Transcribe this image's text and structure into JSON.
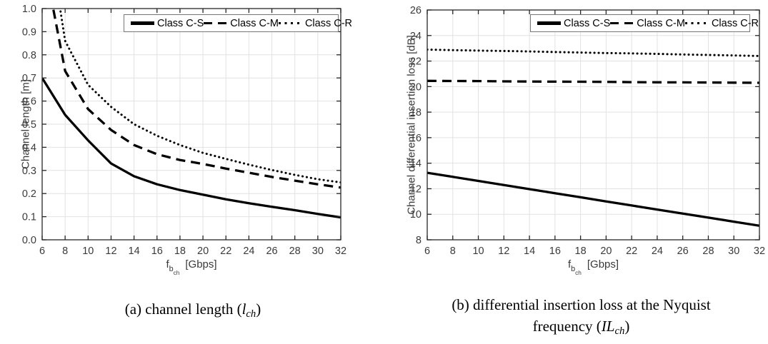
{
  "figures": {
    "a": {
      "caption": {
        "prefix": "(a) channel length (",
        "symbol": "l",
        "sub": "ch",
        "suffix": ")"
      }
    },
    "b": {
      "caption": {
        "line1": "(b) differential insertion loss at the Nyquist",
        "line2_prefix": "frequency (",
        "symbol": "IL",
        "sub": "ch",
        "suffix": ")"
      }
    }
  },
  "chart_data": [
    {
      "type": "line",
      "title": "",
      "xlabel": "f_b_ch [Gbps]",
      "xlabel_parts": {
        "symbol": "f",
        "sub": "b",
        "subsub": "ch",
        "unit": "[Gbps]"
      },
      "ylabel": "Channel length [m]",
      "xlim": [
        6,
        32
      ],
      "ylim": [
        0,
        1
      ],
      "grid": true,
      "legend_position": "top",
      "xticks": [
        6,
        8,
        10,
        12,
        14,
        16,
        18,
        20,
        22,
        24,
        26,
        28,
        30,
        32
      ],
      "yticks": [
        0,
        0.1,
        0.2,
        0.3,
        0.4,
        0.5,
        0.6,
        0.7,
        0.8,
        0.9,
        1
      ],
      "ytick_labels": [
        "0.0",
        "0.1",
        "0.2",
        "0.3",
        "0.4",
        "0.5",
        "0.6",
        "0.7",
        "0.8",
        "0.9",
        "1.0"
      ],
      "x": [
        6,
        8,
        10,
        12,
        14,
        16,
        18,
        20,
        22,
        24,
        26,
        28,
        30,
        32
      ],
      "series": [
        {
          "name": "Class C-S",
          "style": "solid",
          "values": [
            0.7,
            0.54,
            0.43,
            0.33,
            0.275,
            0.24,
            0.215,
            0.195,
            0.175,
            0.158,
            0.143,
            0.128,
            0.112,
            0.097
          ]
        },
        {
          "name": "Class C-M",
          "style": "dashed",
          "values": [
            1.25,
            0.73,
            0.565,
            0.475,
            0.41,
            0.37,
            0.345,
            0.328,
            0.308,
            0.29,
            0.272,
            0.256,
            0.24,
            0.226
          ]
        },
        {
          "name": "Class C-R",
          "style": "dotted",
          "values": [
            1.5,
            0.86,
            0.67,
            0.575,
            0.5,
            0.45,
            0.41,
            0.376,
            0.35,
            0.325,
            0.302,
            0.281,
            0.262,
            0.248
          ]
        }
      ]
    },
    {
      "type": "line",
      "title": "",
      "xlabel": "f_b_ch [Gbps]",
      "xlabel_parts": {
        "symbol": "f",
        "sub": "b",
        "subsub": "ch",
        "unit": "[Gbps]"
      },
      "ylabel": "Channel differential insertion loss [dB]",
      "xlim": [
        6,
        32
      ],
      "ylim": [
        8,
        26
      ],
      "grid": true,
      "legend_position": "top",
      "xticks": [
        6,
        8,
        10,
        12,
        14,
        16,
        18,
        20,
        22,
        24,
        26,
        28,
        30,
        32
      ],
      "yticks": [
        8,
        10,
        12,
        14,
        16,
        18,
        20,
        22,
        24,
        26
      ],
      "ytick_labels": [
        "8",
        "10",
        "12",
        "14",
        "16",
        "18",
        "20",
        "22",
        "24",
        "26"
      ],
      "x": [
        6,
        8,
        10,
        12,
        14,
        16,
        18,
        20,
        22,
        24,
        26,
        28,
        30,
        32
      ],
      "series": [
        {
          "name": "Class C-S",
          "style": "solid",
          "values": [
            13.25,
            12.93,
            12.61,
            12.29,
            11.97,
            11.65,
            11.33,
            11.01,
            10.69,
            10.37,
            10.05,
            9.74,
            9.42,
            9.1
          ]
        },
        {
          "name": "Class C-M",
          "style": "dashed",
          "values": [
            20.45,
            20.44,
            20.43,
            20.41,
            20.4,
            20.39,
            20.38,
            20.37,
            20.35,
            20.34,
            20.33,
            20.32,
            20.31,
            20.3
          ]
        },
        {
          "name": "Class C-R",
          "style": "dotted",
          "values": [
            22.9,
            22.86,
            22.82,
            22.79,
            22.75,
            22.71,
            22.67,
            22.63,
            22.6,
            22.56,
            22.52,
            22.48,
            22.44,
            22.4
          ]
        }
      ]
    }
  ],
  "colors": {
    "line": "#000000",
    "grid": "#e2e2e2",
    "axis_box": "#262626",
    "tick_text": "#3a3a3a",
    "legend_border": "#777777",
    "background": "#ffffff"
  }
}
